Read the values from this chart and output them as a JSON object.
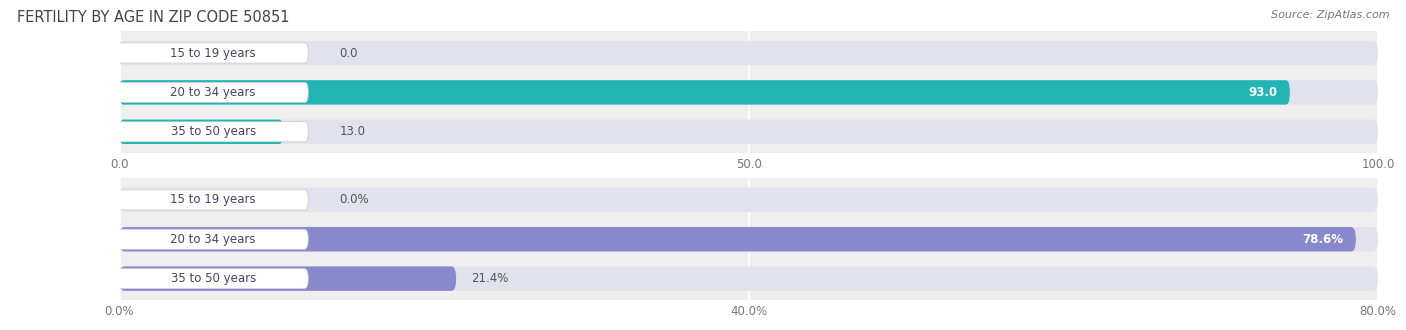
{
  "title": "FERTILITY BY AGE IN ZIP CODE 50851",
  "source": "Source: ZipAtlas.com",
  "chart1": {
    "categories": [
      "15 to 19 years",
      "20 to 34 years",
      "35 to 50 years"
    ],
    "values": [
      0.0,
      93.0,
      13.0
    ],
    "xlim_max": 100.0,
    "xticks": [
      0.0,
      50.0,
      100.0
    ],
    "xtick_labels": [
      "0.0",
      "50.0",
      "100.0"
    ],
    "bar_color": "#22b5b5",
    "bar_color_light": "#7dd8d8",
    "label_value_inside_color": "white",
    "label_value_outside_color": "#555555"
  },
  "chart2": {
    "categories": [
      "15 to 19 years",
      "20 to 34 years",
      "35 to 50 years"
    ],
    "values": [
      0.0,
      78.6,
      21.4
    ],
    "xlim_max": 80.0,
    "xticks": [
      0.0,
      40.0,
      80.0
    ],
    "xtick_labels": [
      "0.0%",
      "40.0%",
      "80.0%"
    ],
    "bar_color": "#8888cc",
    "bar_color_light": "#b0b0e0",
    "label_value_inside_color": "white",
    "label_value_outside_color": "#555555"
  },
  "bg_color": "#efefef",
  "bar_bg_color": "#e2e2ee",
  "pill_bg_color": "#ffffff",
  "pill_text_color": "#444466",
  "title_color": "#444444",
  "source_color": "#777777",
  "label_fontsize": 8.5,
  "tick_fontsize": 8.5,
  "title_fontsize": 10.5,
  "category_fontsize": 8.5,
  "bar_height": 0.62
}
